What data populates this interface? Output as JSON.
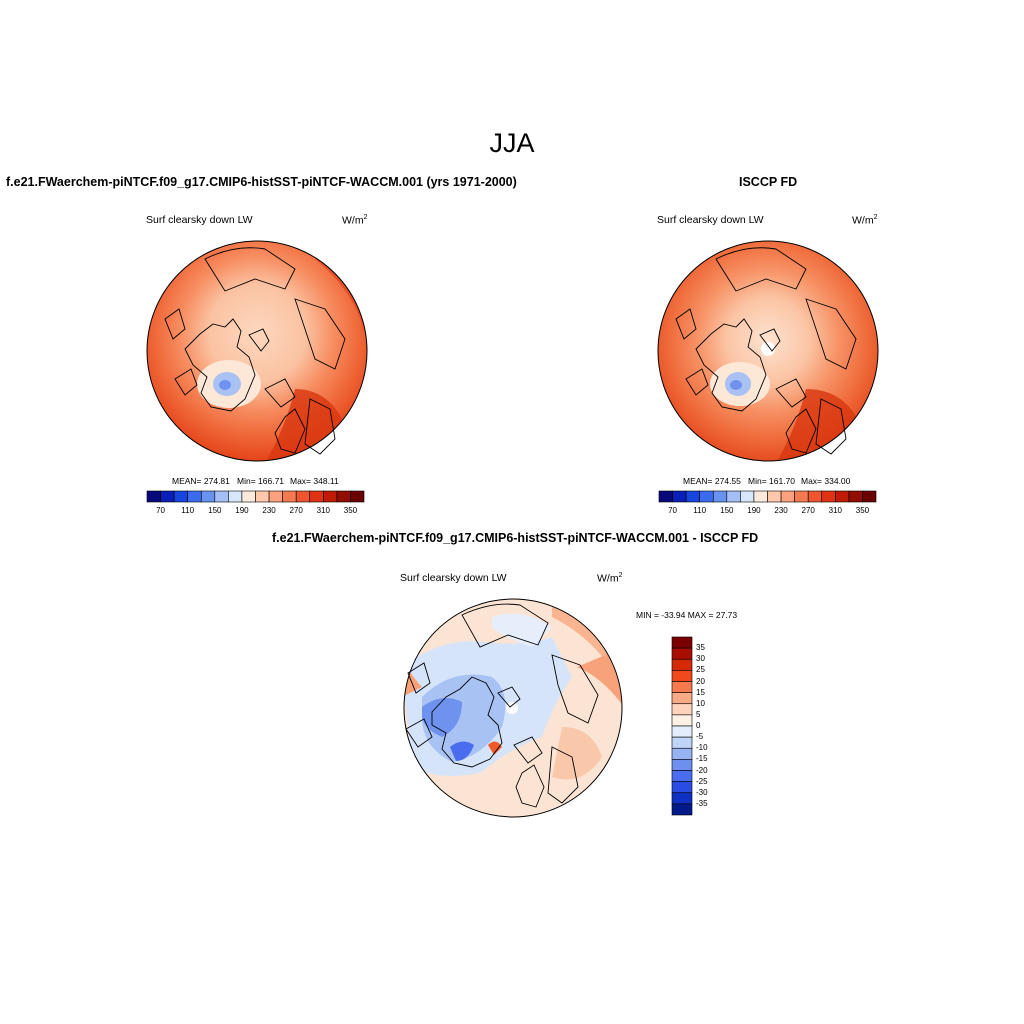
{
  "season_title": "JJA",
  "panels": {
    "model": {
      "title": "f.e21.FWaerchem-piNTCF.f09_g17.CMIP6-histSST-piNTCF-WACCM.001 (yrs 1971-2000)",
      "variable": "Surf clearsky down LW",
      "units_base": "W/m",
      "units_exp": "2",
      "stats": {
        "mean": "MEAN= 274.81",
        "min": "Min= 166.71",
        "max": "Max= 348.11"
      }
    },
    "obs": {
      "title": "ISCCP FD",
      "variable": "Surf clearsky down LW",
      "units_base": "W/m",
      "units_exp": "2",
      "stats": {
        "mean": "MEAN= 274.55",
        "min": "Min= 161.70",
        "max": "Max= 334.00"
      }
    },
    "diff": {
      "title": "f.e21.FWaerchem-piNTCF.f09_g17.CMIP6-histSST-piNTCF-WACCM.001 - ISCCP FD",
      "variable": "Surf clearsky down LW",
      "units_base": "W/m",
      "units_exp": "2",
      "stats": "MIN = -33.94 MAX =  27.73"
    }
  },
  "colorbar_abs": {
    "colors": [
      "#08087a",
      "#0a1fb8",
      "#1745e0",
      "#3b6cf0",
      "#6a93f0",
      "#a3bff5",
      "#d6e6fb",
      "#fbeadb",
      "#fcc9ad",
      "#f9a07c",
      "#f47a52",
      "#ee5530",
      "#df3412",
      "#bf1c05",
      "#920e02",
      "#6b0000"
    ],
    "tick_labels": [
      "70",
      "110",
      "150",
      "190",
      "230",
      "270",
      "310",
      "350"
    ]
  },
  "colorbar_diff": {
    "colors_top_to_bottom": [
      "#7a0000",
      "#a80d00",
      "#d42a08",
      "#f04a1c",
      "#f77a4c",
      "#fbaa86",
      "#fdd4bb",
      "#fdf0e4",
      "#e3edfb",
      "#c0d4f7",
      "#97b3f2",
      "#6c8ff0",
      "#4a6cee",
      "#2b4ce4",
      "#1030c4",
      "#001a8a"
    ],
    "tick_labels": [
      "35",
      "30",
      "25",
      "20",
      "15",
      "10",
      "5",
      "0",
      "-5",
      "-10",
      "-15",
      "-20",
      "-25",
      "-30",
      "-35"
    ]
  }
}
